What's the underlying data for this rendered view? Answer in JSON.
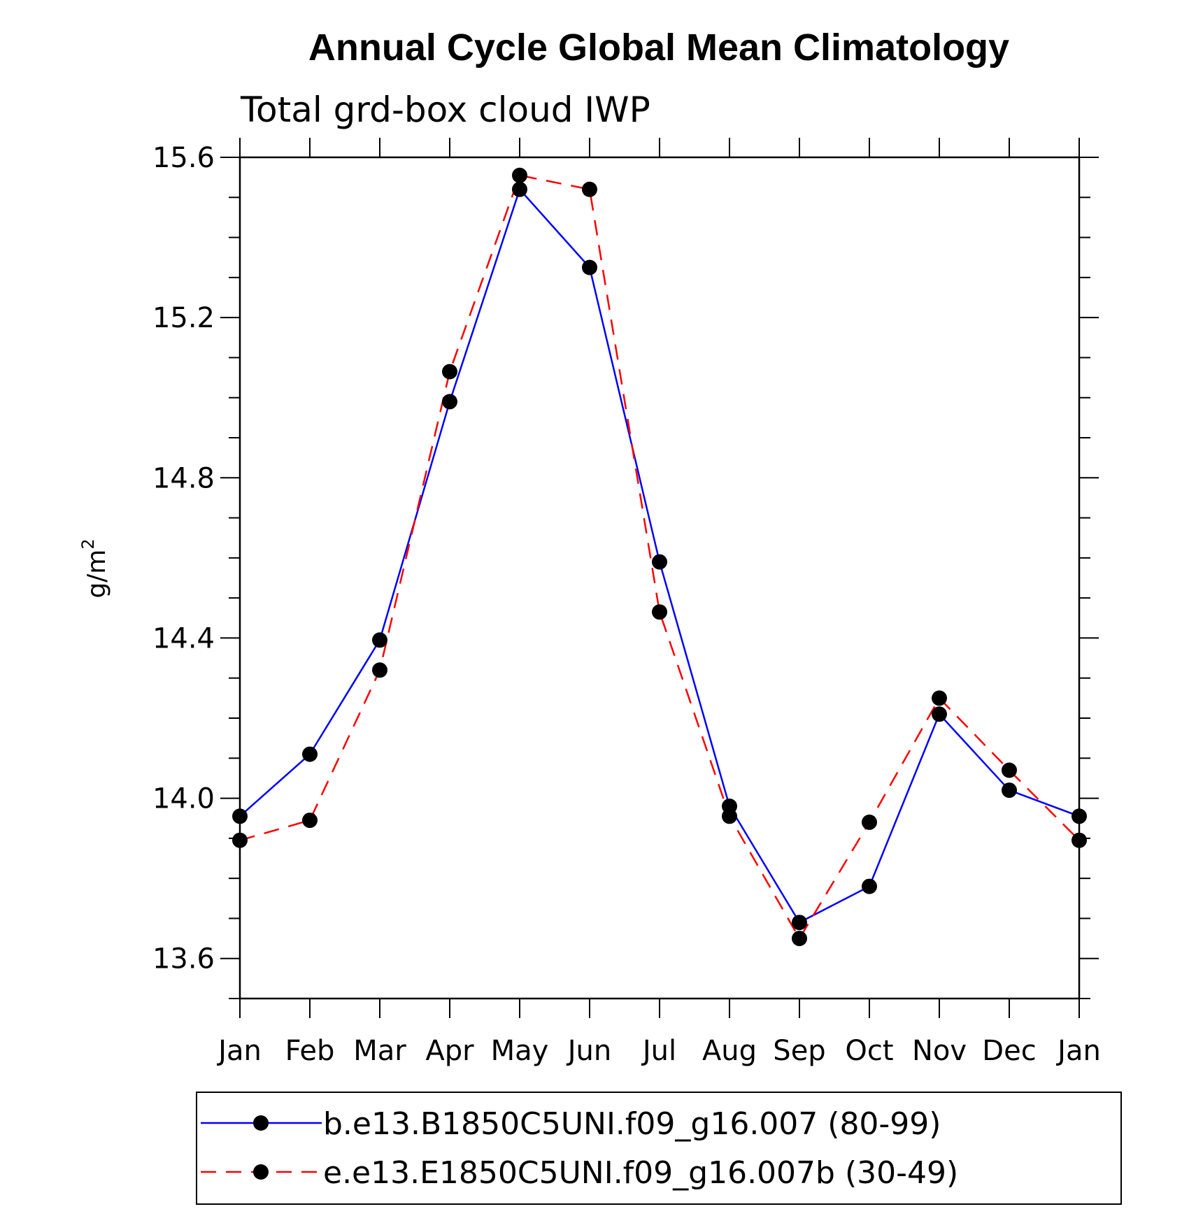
{
  "chart_data": {
    "type": "line",
    "title": "Annual Cycle Global Mean Climatology",
    "subtitle": "Total grd-box cloud IWP",
    "ylabel_base": "g/m",
    "ylabel_sup": "2",
    "xlabel": "",
    "categories": [
      "Jan",
      "Feb",
      "Mar",
      "Apr",
      "May",
      "Jun",
      "Jul",
      "Aug",
      "Sep",
      "Oct",
      "Nov",
      "Dec",
      "Jan"
    ],
    "ylim": [
      13.5,
      15.6
    ],
    "yticks": [
      13.6,
      14.0,
      14.4,
      14.8,
      15.2,
      15.6
    ],
    "ytick_labels": [
      "13.6",
      "14.0",
      "14.4",
      "14.8",
      "15.2",
      "15.6"
    ],
    "y_minor_step": 0.1,
    "grid": false,
    "legend_position": "bottom",
    "series": [
      {
        "name": "b.e13.B1850C5UNI.f09_g16.007 (80-99)",
        "color": "#0000ff",
        "line_style": "solid",
        "marker": "filled-circle",
        "values": [
          13.955,
          14.11,
          14.395,
          14.99,
          15.52,
          15.325,
          14.59,
          13.98,
          13.69,
          13.78,
          14.21,
          14.02,
          13.955
        ]
      },
      {
        "name": "e.e13.E1850C5UNI.f09_g16.007b (30-49)",
        "color": "#ff0000",
        "line_style": "dashed",
        "marker": "filled-circle",
        "values": [
          13.895,
          13.945,
          14.32,
          15.065,
          15.555,
          15.52,
          14.465,
          13.955,
          13.65,
          13.94,
          14.25,
          14.07,
          13.895
        ]
      }
    ]
  }
}
